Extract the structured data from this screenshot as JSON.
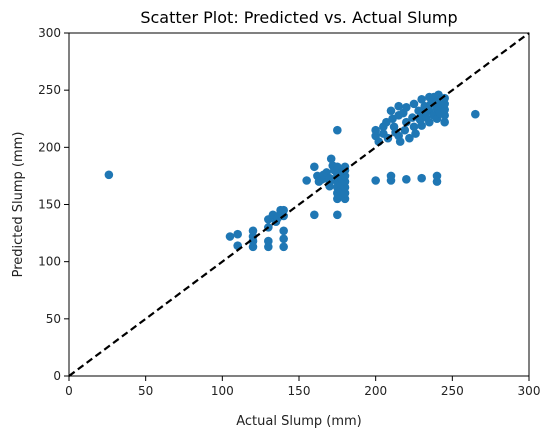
{
  "chart_data": {
    "type": "scatter",
    "title": "Scatter Plot: Predicted vs. Actual Slump",
    "xlabel": "Actual Slump (mm)",
    "ylabel": "Predicted Slump (mm)",
    "xlim": [
      0,
      300
    ],
    "ylim": [
      0,
      300
    ],
    "x_ticks": [
      0,
      50,
      100,
      150,
      200,
      250,
      300
    ],
    "y_ticks": [
      0,
      50,
      100,
      150,
      200,
      250,
      300
    ],
    "x_tick_labels": [
      "0",
      "50",
      "100",
      "150",
      "200",
      "250",
      "300"
    ],
    "y_tick_labels": [
      "0",
      "50",
      "100",
      "150",
      "200",
      "250",
      "300"
    ],
    "grid": false,
    "marker_color": "#1f77b4",
    "reference_line": {
      "style": "dashed",
      "color": "#000000",
      "from": [
        0,
        0
      ],
      "to": [
        300,
        300
      ]
    },
    "series": [
      {
        "points": [
          [
            26,
            176
          ],
          [
            105,
            122
          ],
          [
            110,
            114
          ],
          [
            110,
            124
          ],
          [
            120,
            113
          ],
          [
            120,
            118
          ],
          [
            120,
            122
          ],
          [
            120,
            127
          ],
          [
            130,
            113
          ],
          [
            130,
            118
          ],
          [
            130,
            130
          ],
          [
            130,
            137
          ],
          [
            133,
            141
          ],
          [
            135,
            135
          ],
          [
            136,
            138
          ],
          [
            138,
            145
          ],
          [
            138,
            142
          ],
          [
            140,
            113
          ],
          [
            140,
            120
          ],
          [
            140,
            127
          ],
          [
            140,
            140
          ],
          [
            140,
            145
          ],
          [
            155,
            171
          ],
          [
            160,
            141
          ],
          [
            160,
            183
          ],
          [
            162,
            175
          ],
          [
            163,
            170
          ],
          [
            165,
            172
          ],
          [
            166,
            176
          ],
          [
            168,
            178
          ],
          [
            170,
            170
          ],
          [
            170,
            166
          ],
          [
            170,
            173
          ],
          [
            171,
            190
          ],
          [
            172,
            184
          ],
          [
            173,
            180
          ],
          [
            175,
            141
          ],
          [
            175,
            155
          ],
          [
            175,
            160
          ],
          [
            175,
            165
          ],
          [
            175,
            170
          ],
          [
            175,
            176
          ],
          [
            175,
            183
          ],
          [
            175,
            215
          ],
          [
            176,
            158
          ],
          [
            177,
            162
          ],
          [
            177,
            168
          ],
          [
            178,
            172
          ],
          [
            178,
            178
          ],
          [
            180,
            155
          ],
          [
            180,
            160
          ],
          [
            180,
            165
          ],
          [
            180,
            170
          ],
          [
            180,
            175
          ],
          [
            180,
            180
          ],
          [
            180,
            183
          ],
          [
            200,
            171
          ],
          [
            200,
            210
          ],
          [
            200,
            215
          ],
          [
            202,
            205
          ],
          [
            205,
            212
          ],
          [
            205,
            218
          ],
          [
            207,
            222
          ],
          [
            208,
            208
          ],
          [
            210,
            232
          ],
          [
            210,
            171
          ],
          [
            210,
            175
          ],
          [
            211,
            225
          ],
          [
            212,
            218
          ],
          [
            213,
            213
          ],
          [
            215,
            236
          ],
          [
            215,
            228
          ],
          [
            215,
            210
          ],
          [
            216,
            205
          ],
          [
            218,
            230
          ],
          [
            219,
            215
          ],
          [
            220,
            172
          ],
          [
            220,
            222
          ],
          [
            220,
            235
          ],
          [
            222,
            208
          ],
          [
            224,
            226
          ],
          [
            225,
            238
          ],
          [
            225,
            218
          ],
          [
            226,
            212
          ],
          [
            228,
            232
          ],
          [
            229,
            224
          ],
          [
            230,
            173
          ],
          [
            230,
            242
          ],
          [
            230,
            230
          ],
          [
            230,
            219
          ],
          [
            232,
            236
          ],
          [
            233,
            226
          ],
          [
            235,
            244
          ],
          [
            235,
            232
          ],
          [
            235,
            222
          ],
          [
            236,
            238
          ],
          [
            238,
            228
          ],
          [
            238,
            244
          ],
          [
            240,
            170
          ],
          [
            240,
            175
          ],
          [
            240,
            225
          ],
          [
            240,
            234
          ],
          [
            240,
            240
          ],
          [
            241,
            246
          ],
          [
            242,
            230
          ],
          [
            243,
            237
          ],
          [
            245,
            222
          ],
          [
            245,
            228
          ],
          [
            245,
            233
          ],
          [
            245,
            238
          ],
          [
            245,
            243
          ],
          [
            265,
            229
          ]
        ]
      }
    ]
  }
}
